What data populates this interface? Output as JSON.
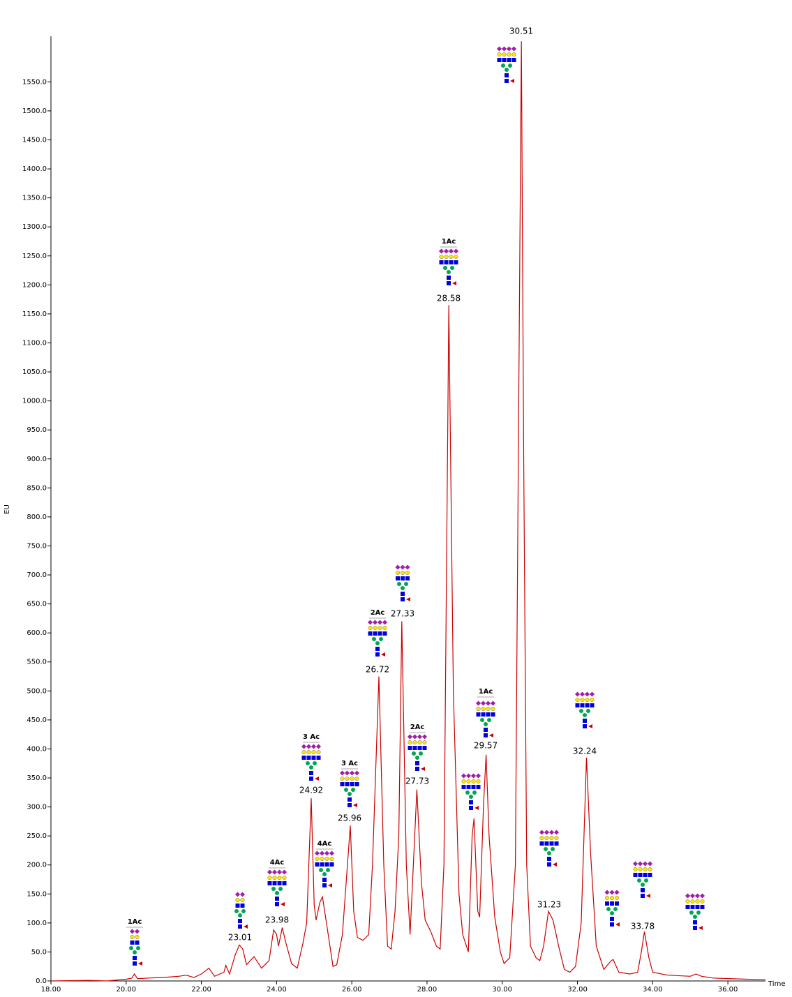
{
  "chart_data": {
    "type": "line",
    "x_label": "Time",
    "y_label": "EU",
    "xlim": [
      18,
      37
    ],
    "ylim": [
      0,
      1625
    ],
    "xticks": [
      {
        "value": 18,
        "label": "18.00"
      },
      {
        "value": 20,
        "label": "20.00"
      },
      {
        "value": 22,
        "label": "22.00"
      },
      {
        "value": 24,
        "label": "24.00"
      },
      {
        "value": 26,
        "label": "26.00"
      },
      {
        "value": 28,
        "label": "28.00"
      },
      {
        "value": 30,
        "label": "30.00"
      },
      {
        "value": 32,
        "label": "32.00"
      },
      {
        "value": 34,
        "label": "34.00"
      },
      {
        "value": 36,
        "label": "36.00"
      }
    ],
    "yticks": [
      {
        "value": 0,
        "label": "0.0"
      },
      {
        "value": 50,
        "label": "50.0"
      },
      {
        "value": 100,
        "label": "100.0"
      },
      {
        "value": 150,
        "label": "150.0"
      },
      {
        "value": 200,
        "label": "200.0"
      },
      {
        "value": 250,
        "label": "250.0"
      },
      {
        "value": 300,
        "label": "300.0"
      },
      {
        "value": 350,
        "label": "350.0"
      },
      {
        "value": 400,
        "label": "400.0"
      },
      {
        "value": 450,
        "label": "450.0"
      },
      {
        "value": 500,
        "label": "500.0"
      },
      {
        "value": 550,
        "label": "550.0"
      },
      {
        "value": 600,
        "label": "600.0"
      },
      {
        "value": 650,
        "label": "650.0"
      },
      {
        "value": 700,
        "label": "700.0"
      },
      {
        "value": 750,
        "label": "750.0"
      },
      {
        "value": 800,
        "label": "800.0"
      },
      {
        "value": 850,
        "label": "850.0"
      },
      {
        "value": 900,
        "label": "900.0"
      },
      {
        "value": 950,
        "label": "950.0"
      },
      {
        "value": 1000,
        "label": "1000.0"
      },
      {
        "value": 1050,
        "label": "1050.0"
      },
      {
        "value": 1100,
        "label": "1100.0"
      },
      {
        "value": 1150,
        "label": "1150.0"
      },
      {
        "value": 1200,
        "label": "1200.0"
      },
      {
        "value": 1250,
        "label": "1250.0"
      },
      {
        "value": 1300,
        "label": "1300.0"
      },
      {
        "value": 1350,
        "label": "1350.0"
      },
      {
        "value": 1400,
        "label": "1400.0"
      },
      {
        "value": 1450,
        "label": "1450.0"
      },
      {
        "value": 1500,
        "label": "1500.0"
      },
      {
        "value": 1550,
        "label": "1550.0"
      }
    ],
    "series": [
      {
        "color": "#cc0000",
        "x": [
          18.0,
          19.0,
          19.5,
          20.0,
          20.15,
          20.22,
          20.3,
          20.6,
          21.0,
          21.4,
          21.6,
          21.8,
          22.0,
          22.2,
          22.35,
          22.6,
          22.65,
          22.75,
          22.9,
          23.01,
          23.1,
          23.2,
          23.4,
          23.6,
          23.8,
          23.92,
          24.0,
          24.05,
          24.15,
          24.25,
          24.4,
          24.55,
          24.7,
          24.8,
          24.92,
          25.0,
          25.05,
          25.15,
          25.22,
          25.35,
          25.5,
          25.6,
          25.75,
          25.85,
          25.96,
          26.05,
          26.15,
          26.3,
          26.45,
          26.55,
          26.72,
          26.85,
          26.95,
          27.05,
          27.15,
          27.25,
          27.33,
          27.45,
          27.55,
          27.73,
          27.85,
          27.95,
          28.1,
          28.25,
          28.35,
          28.45,
          28.58,
          28.7,
          28.85,
          28.95,
          29.1,
          29.2,
          29.25,
          29.35,
          29.4,
          29.5,
          29.57,
          29.65,
          29.8,
          29.95,
          30.05,
          30.2,
          30.35,
          30.45,
          30.51,
          30.57,
          30.65,
          30.75,
          30.9,
          31.0,
          31.1,
          31.23,
          31.35,
          31.5,
          31.65,
          31.8,
          31.95,
          32.1,
          32.24,
          32.35,
          32.5,
          32.7,
          32.9,
          32.95,
          33.1,
          33.4,
          33.6,
          33.7,
          33.78,
          33.9,
          34.0,
          34.4,
          35.0,
          35.15,
          35.3,
          35.6,
          36.5,
          37.0
        ],
        "values": [
          0,
          1,
          0,
          3,
          5,
          12,
          4,
          5,
          6,
          8,
          10,
          6,
          12,
          22,
          8,
          15,
          27,
          12,
          45,
          62,
          55,
          28,
          42,
          22,
          35,
          88,
          80,
          60,
          92,
          65,
          30,
          22,
          65,
          100,
          315,
          130,
          105,
          135,
          145,
          90,
          25,
          28,
          80,
          170,
          268,
          120,
          75,
          70,
          80,
          200,
          525,
          200,
          60,
          55,
          120,
          250,
          620,
          200,
          80,
          330,
          170,
          105,
          85,
          60,
          55,
          200,
          1165,
          500,
          150,
          80,
          50,
          250,
          280,
          120,
          110,
          300,
          390,
          250,
          110,
          50,
          30,
          40,
          200,
          1100,
          1620,
          900,
          200,
          60,
          40,
          35,
          60,
          120,
          105,
          60,
          20,
          15,
          25,
          100,
          385,
          220,
          60,
          20,
          35,
          37,
          15,
          12,
          15,
          50,
          85,
          40,
          15,
          10,
          8,
          12,
          8,
          5,
          3,
          2
        ]
      }
    ],
    "annotations": [
      {
        "text": "1Ac"
      },
      {
        "value": 23.01
      },
      {
        "text": "4Ac",
        "value": 23.98
      },
      {
        "text": "3 Ac",
        "value": 24.92
      },
      {
        "text": "4Ac"
      },
      {
        "text": "3 Ac",
        "value": 25.96
      },
      {
        "text": "2Ac",
        "value": 26.72
      },
      {
        "value": 27.33
      },
      {
        "text": "2Ac",
        "value": 27.73
      },
      {
        "text": "1Ac",
        "value": 28.58
      },
      {},
      {
        "text": "1Ac",
        "value": 29.57
      },
      {
        "value": 30.51
      },
      {
        "value": 31.23
      },
      {
        "value": 32.24
      },
      {},
      {
        "value": 33.78
      },
      {}
    ]
  }
}
